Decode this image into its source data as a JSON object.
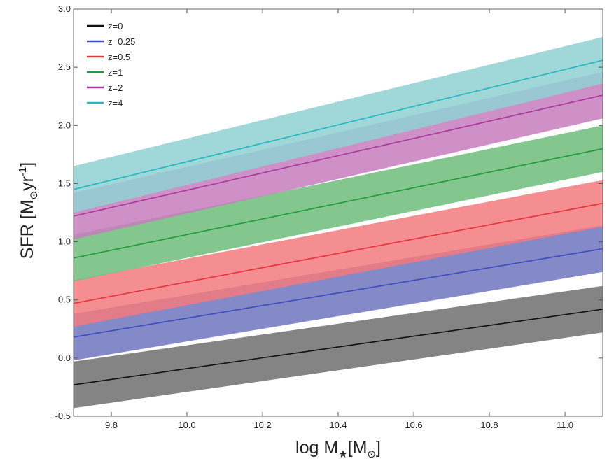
{
  "chart_data": {
    "type": "area",
    "title": "",
    "xlabel": {
      "prefix": "log M",
      "star": "★",
      "bracket": "[M",
      "sun": "⊙",
      "close": "]"
    },
    "ylabel": {
      "prefix": "SFR [M",
      "sun": "⊙",
      "unit": "yr",
      "sup": "-1",
      "close": "]"
    },
    "xlim": [
      9.7,
      11.1
    ],
    "ylim": [
      -0.5,
      3.0
    ],
    "xticks": [
      9.8,
      10.0,
      10.2,
      10.4,
      10.6,
      10.8,
      11.0
    ],
    "xtick_labels": [
      "9.8",
      "10.0",
      "10.2",
      "10.4",
      "10.6",
      "10.8",
      "11.0"
    ],
    "yticks": [
      -0.5,
      0.0,
      0.5,
      1.0,
      1.5,
      2.0,
      2.5,
      3.0
    ],
    "ytick_labels": [
      "-0.5",
      "0.0",
      "0.5",
      "1.0",
      "1.5",
      "2.0",
      "2.5",
      "3.0"
    ],
    "legend_position": "top-left",
    "band_halfwidth_dex": 0.2,
    "series": [
      {
        "name": "z=0",
        "label": "z=0",
        "x": [
          9.7,
          11.1
        ],
        "y": [
          -0.23,
          0.42
        ],
        "color": "#111111",
        "band_color": "#6e6e6e"
      },
      {
        "name": "z=0.25",
        "label": "z=0.25",
        "x": [
          9.7,
          11.1
        ],
        "y": [
          0.18,
          0.94
        ],
        "color": "#3a4dbb",
        "band_color": "#6f74bd"
      },
      {
        "name": "z=0.5",
        "label": "z=0.5",
        "x": [
          9.7,
          11.1
        ],
        "y": [
          0.47,
          1.33
        ],
        "color": "#e8323a",
        "band_color": "#f27a7e"
      },
      {
        "name": "z=1",
        "label": "z=1",
        "x": [
          9.7,
          11.1
        ],
        "y": [
          0.86,
          1.8
        ],
        "color": "#1f9a38",
        "band_color": "#6dbd7a"
      },
      {
        "name": "z=2",
        "label": "z=2",
        "x": [
          9.7,
          11.1
        ],
        "y": [
          1.22,
          2.26
        ],
        "color": "#a8379c",
        "band_color": "#c77dbd"
      },
      {
        "name": "z=4",
        "label": "z=4",
        "x": [
          9.7,
          11.1
        ],
        "y": [
          1.45,
          2.56
        ],
        "color": "#22b6be",
        "band_color": "#8fd1d3"
      }
    ]
  }
}
